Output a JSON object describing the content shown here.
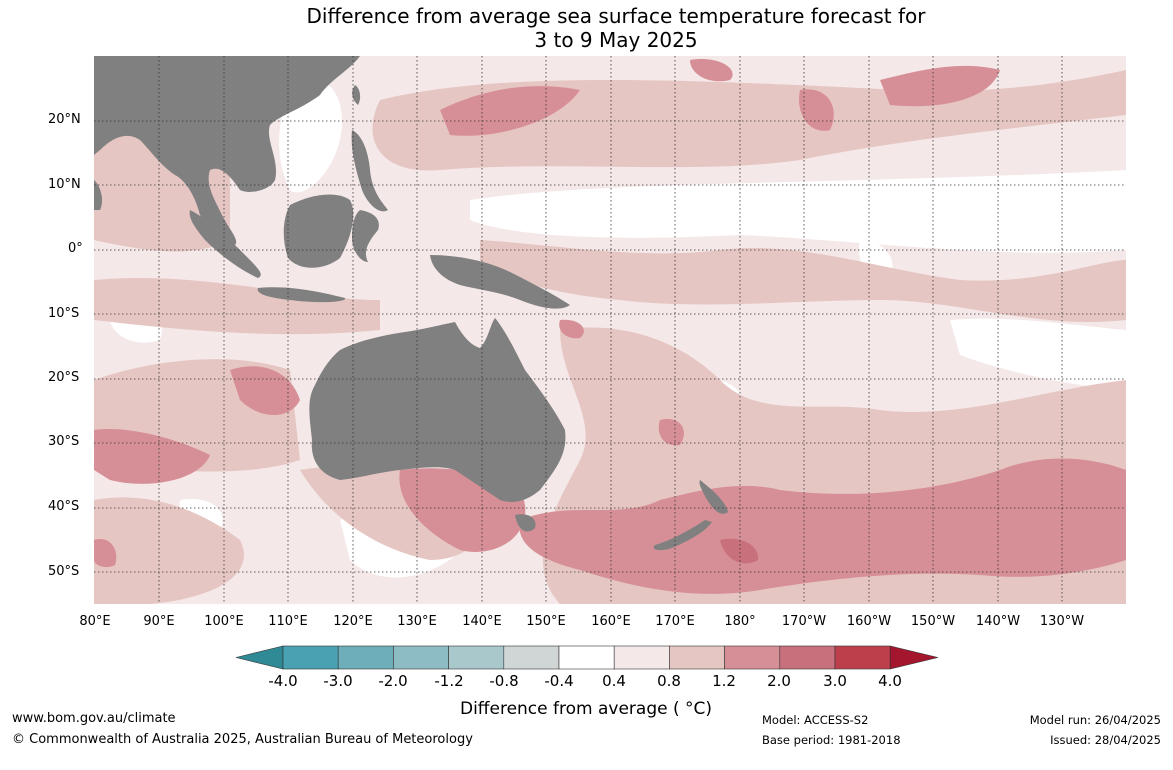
{
  "title_line1": "Difference from average sea surface temperature forecast for",
  "title_line2": "3 to 9 May 2025",
  "lat_labels": [
    "20°N",
    "10°N",
    "0°",
    "10°S",
    "20°S",
    "30°S",
    "40°S",
    "50°S"
  ],
  "lon_labels": [
    "80°E",
    "90°E",
    "100°E",
    "110°E",
    "120°E",
    "130°E",
    "140°E",
    "150°E",
    "160°E",
    "170°E",
    "180°",
    "170°W",
    "160°W",
    "150°W",
    "140°W",
    "130°W"
  ],
  "colorbar": {
    "ticks": [
      "-4.0",
      "-3.0",
      "-2.0",
      "-1.2",
      "-0.8",
      "-0.4",
      "0.4",
      "0.8",
      "1.2",
      "2.0",
      "3.0",
      "4.0"
    ],
    "colors": [
      "#4aa1b2",
      "#6eaebb",
      "#8dbcc4",
      "#a9c8cc",
      "#d0d5d6",
      "#ffffff",
      "#f4e8e8",
      "#e6c6c3",
      "#d78f97",
      "#c9707d",
      "#bd3f4c"
    ],
    "under_color": "#2f8a96",
    "over_color": "#a4162e",
    "title": "Difference from average ( °C)"
  },
  "colors": {
    "land": "#808080",
    "grid": "#333333"
  },
  "footer": {
    "website": "www.bom.gov.au/climate",
    "copyright": "© Commonwealth of Australia 2025, Australian Bureau of Meteorology",
    "model": "Model: ACCESS-S2",
    "base_period": "Base period: 1981-2018",
    "model_run": "Model run: 26/04/2025",
    "issued": "Issued: 28/04/2025"
  }
}
